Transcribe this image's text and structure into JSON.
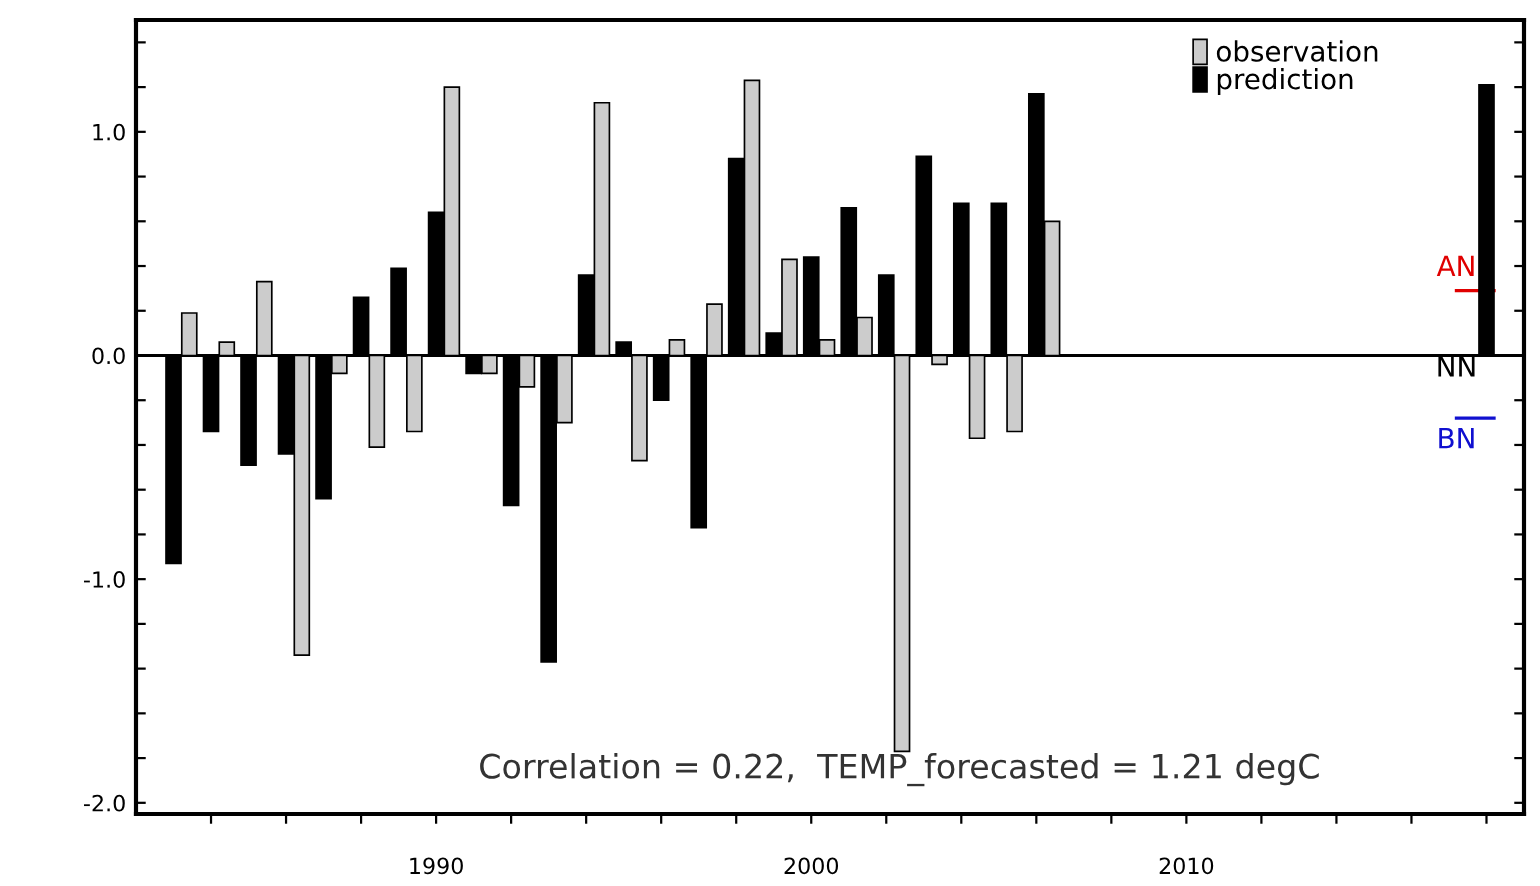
{
  "chart_data": {
    "type": "bar",
    "annotations": [
      "Correlation = 0.22,  TEMP_forecasted = 1.21 degC"
    ],
    "series": [
      {
        "name": "observation",
        "color": "#cccccc",
        "x": [
          1983,
          1984,
          1985,
          1986,
          1987,
          1988,
          1989,
          1990,
          1991,
          1992,
          1993,
          1994,
          1995,
          1996,
          1997,
          1998,
          1999,
          2000,
          2001,
          2002,
          2003,
          2004,
          2005,
          2006
        ],
        "values": [
          0.19,
          0.06,
          0.33,
          -1.34,
          -0.08,
          -0.41,
          -0.34,
          1.2,
          -0.08,
          -0.14,
          -0.3,
          1.13,
          -0.47,
          0.07,
          0.23,
          1.23,
          0.43,
          0.07,
          0.17,
          -1.77,
          -0.04,
          -0.37,
          -0.34,
          0.6
        ]
      },
      {
        "name": "prediction",
        "color": "#000000",
        "x": [
          1983,
          1984,
          1985,
          1986,
          1987,
          1988,
          1989,
          1990,
          1991,
          1992,
          1993,
          1994,
          1995,
          1996,
          1997,
          1998,
          1999,
          2000,
          2001,
          2002,
          2003,
          2004,
          2005,
          2006,
          2018
        ],
        "values": [
          -0.93,
          -0.34,
          -0.49,
          -0.44,
          -0.64,
          0.26,
          0.39,
          0.64,
          -0.08,
          -0.67,
          -1.37,
          0.36,
          0.06,
          -0.2,
          -0.77,
          0.88,
          0.1,
          0.44,
          0.66,
          0.36,
          0.89,
          0.68,
          0.68,
          1.17,
          1.21
        ]
      }
    ],
    "xlim": [
      1982,
      2019
    ],
    "xticks": [
      {
        "value": 1984,
        "label": null
      },
      {
        "value": 1986,
        "label": null
      },
      {
        "value": 1988,
        "label": null
      },
      {
        "value": 1990,
        "label": "1990"
      },
      {
        "value": 1992,
        "label": null
      },
      {
        "value": 1994,
        "label": null
      },
      {
        "value": 1996,
        "label": null
      },
      {
        "value": 1998,
        "label": null
      },
      {
        "value": 2000,
        "label": "2000"
      },
      {
        "value": 2002,
        "label": null
      },
      {
        "value": 2004,
        "label": null
      },
      {
        "value": 2006,
        "label": null
      },
      {
        "value": 2008,
        "label": null
      },
      {
        "value": 2010,
        "label": "2010"
      },
      {
        "value": 2012,
        "label": null
      },
      {
        "value": 2014,
        "label": null
      },
      {
        "value": 2016,
        "label": null
      },
      {
        "value": 2018,
        "label": null
      }
    ],
    "ylim": [
      -2.05,
      1.5
    ],
    "yticks": [
      {
        "value": -2.0,
        "label": "-2.0"
      },
      {
        "value": -1.8,
        "label": null
      },
      {
        "value": -1.6,
        "label": null
      },
      {
        "value": -1.4,
        "label": null
      },
      {
        "value": -1.2,
        "label": null
      },
      {
        "value": -1.0,
        "label": "-1.0"
      },
      {
        "value": -0.8,
        "label": null
      },
      {
        "value": -0.6,
        "label": null
      },
      {
        "value": -0.4,
        "label": null
      },
      {
        "value": -0.2,
        "label": null
      },
      {
        "value": 0.0,
        "label": "0.0"
      },
      {
        "value": 0.2,
        "label": null
      },
      {
        "value": 0.4,
        "label": null
      },
      {
        "value": 0.6,
        "label": null
      },
      {
        "value": 0.8,
        "label": null
      },
      {
        "value": 1.0,
        "label": "1.0"
      },
      {
        "value": 1.2,
        "label": null
      },
      {
        "value": 1.4,
        "label": null
      }
    ],
    "ref_lines": [
      {
        "axis": "y",
        "value": 0.29,
        "label": "AN",
        "color": "#e00000"
      },
      {
        "axis": "y",
        "value": 0,
        "label": "NN",
        "color": "#000000"
      },
      {
        "axis": "y",
        "value": -0.28,
        "label": "BN",
        "color": "#1010d0"
      }
    ],
    "legend": "top right",
    "grid": false
  }
}
